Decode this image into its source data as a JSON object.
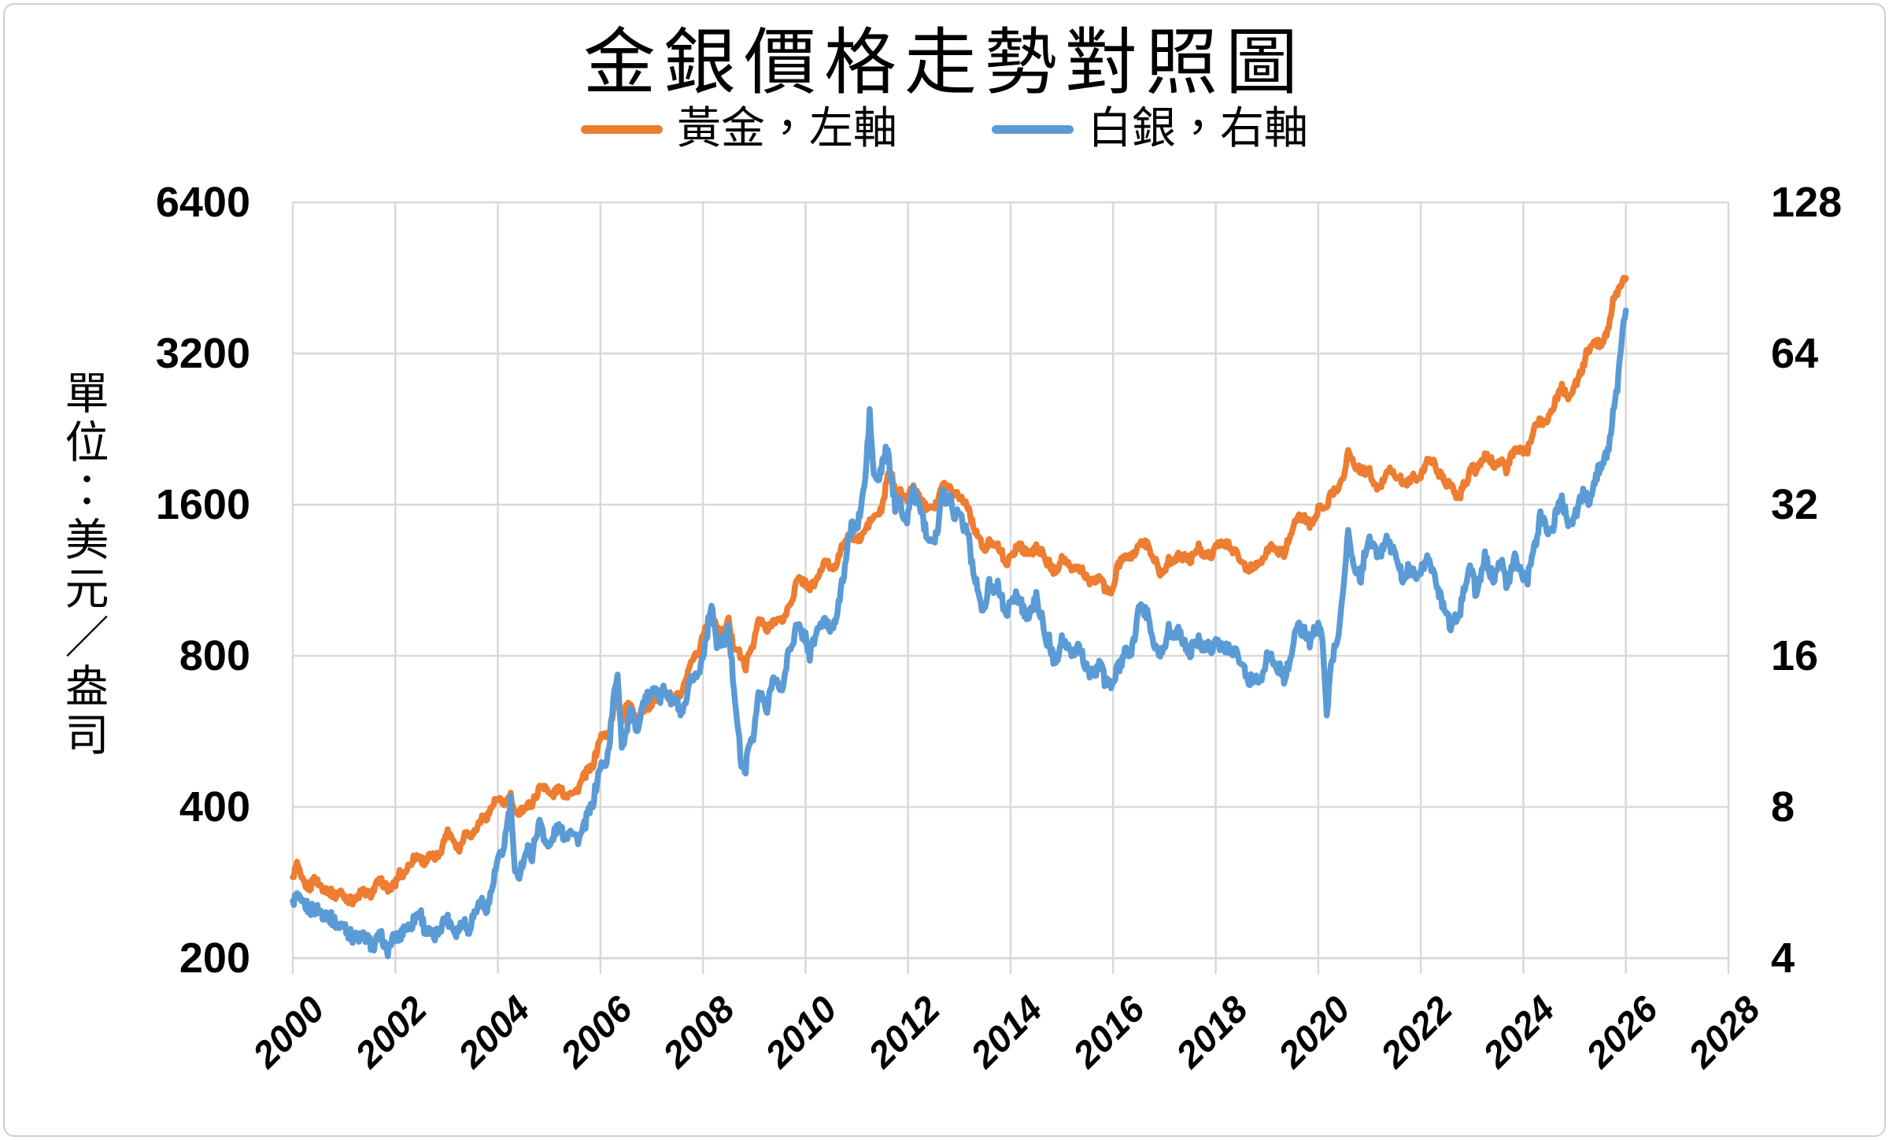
{
  "title": "金銀價格走勢對照圖",
  "y_axis_title": "單位：美元／盎司",
  "legend": [
    {
      "label": "黃金，左軸",
      "color": "#ED7D31"
    },
    {
      "label": "白銀，右軸",
      "color": "#5B9BD5"
    }
  ],
  "left_axis": {
    "ticks": [
      "6400",
      "3200",
      "1600",
      "800",
      "400",
      "200"
    ]
  },
  "right_axis": {
    "ticks": [
      "128",
      "64",
      "32",
      "16",
      "8",
      "4"
    ]
  },
  "x_axis": {
    "ticks": [
      "2000",
      "2002",
      "2004",
      "2006",
      "2008",
      "2010",
      "2012",
      "2014",
      "2016",
      "2018",
      "2020",
      "2022",
      "2024",
      "2026",
      "2028"
    ]
  },
  "colors": {
    "gridline": "#d9d9d9",
    "gold": "#ED7D31",
    "silver": "#5B9BD5"
  },
  "chart_data": {
    "type": "line",
    "title": "金銀價格走勢對照圖",
    "x_axis_range": [
      2000,
      2028
    ],
    "x_start_year": 2000,
    "x_step": "monthly",
    "grid": true,
    "legend_position": "top",
    "left_axis_scale": {
      "type": "log2",
      "min": 200,
      "max": 6400,
      "unit": "USD/oz"
    },
    "right_axis_scale": {
      "type": "log2",
      "min": 4,
      "max": 128,
      "unit": "USD/oz"
    },
    "series": [
      {
        "name": "黃金，左軸",
        "axis": "left",
        "color": "#ED7D31",
        "values": [
          290,
          308,
          286,
          280,
          276,
          288,
          282,
          276,
          274,
          270,
          266,
          272,
          266,
          262,
          260,
          262,
          272,
          270,
          267,
          274,
          284,
          283,
          276,
          276,
          281,
          295,
          294,
          304,
          314,
          321,
          315,
          310,
          319,
          317,
          320,
          333,
          357,
          352,
          340,
          328,
          352,
          356,
          352,
          362,
          378,
          380,
          390,
          407,
          414,
          406,
          410,
          420,
          384,
          392,
          398,
          402,
          407,
          422,
          440,
          442,
          424,
          423,
          436,
          429,
          421,
          432,
          426,
          439,
          458,
          472,
          478,
          512,
          552,
          556,
          560,
          615,
          690,
          598,
          634,
          634,
          600,
          586,
          628,
          630,
          632,
          666,
          656,
          680,
          668,
          656,
          666,
          666,
          714,
          756,
          808,
          804,
          892,
          924,
          985,
          912,
          890,
          892,
          942,
          840,
          830,
          790,
          762,
          818,
          858,
          945,
          926,
          892,
          930,
          948,
          936,
          950,
          998,
          1045,
          1130,
          1134,
          1118,
          1096,
          1114,
          1150,
          1206,
          1234,
          1195,
          1216,
          1272,
          1344,
          1372,
          1392,
          1358,
          1374,
          1426,
          1475,
          1512,
          1530,
          1575,
          1790,
          1870,
          1670,
          1740,
          1640,
          1658,
          1744,
          1676,
          1652,
          1586,
          1600,
          1592,
          1632,
          1746,
          1748,
          1722,
          1686,
          1672,
          1628,
          1594,
          1470,
          1414,
          1344,
          1288,
          1352,
          1350,
          1318,
          1276,
          1226,
          1246,
          1302,
          1338,
          1300,
          1290,
          1280,
          1312,
          1298,
          1238,
          1224,
          1178,
          1202,
          1252,
          1228,
          1188,
          1200,
          1192,
          1182,
          1132,
          1118,
          1126,
          1160,
          1088,
          1062,
          1098,
          1196,
          1246,
          1244,
          1262,
          1278,
          1340,
          1342,
          1328,
          1274,
          1240,
          1158,
          1194,
          1236,
          1232,
          1268,
          1248,
          1262,
          1238,
          1284,
          1316,
          1282,
          1284,
          1266,
          1332,
          1332,
          1326,
          1336,
          1304,
          1282,
          1240,
          1194,
          1192,
          1216,
          1224,
          1252,
          1294,
          1322,
          1302,
          1288,
          1282,
          1360,
          1416,
          1502,
          1512,
          1496,
          1466,
          1480,
          1562,
          1598,
          1592,
          1682,
          1718,
          1734,
          1845,
          2050,
          1942,
          1902,
          1868,
          1866,
          1864,
          1744,
          1712,
          1770,
          1868,
          1882,
          1808,
          1814,
          1758,
          1778,
          1822,
          1792,
          1818,
          1910,
          1990,
          1938,
          1850,
          1838,
          1766,
          1768,
          1672,
          1652,
          1752,
          1802,
          1922,
          1862,
          1922,
          1992,
          1982,
          1922,
          1952,
          1942,
          1872,
          1982,
          2042,
          2062,
          2042,
          2052,
          2162,
          2332,
          2352,
          2332,
          2402,
          2502,
          2632,
          2742,
          2652,
          2632,
          2752,
          2872,
          3002,
          3252,
          3302,
          3352,
          3352,
          3402,
          3652,
          4052,
          4202,
          4402,
          4520
        ]
      },
      {
        "name": "白銀，右軸",
        "axis": "right",
        "color": "#5B9BD5",
        "values": [
          5.2,
          5.3,
          5.1,
          5.1,
          5.0,
          5.0,
          5.0,
          4.9,
          4.9,
          4.8,
          4.7,
          4.6,
          4.7,
          4.5,
          4.4,
          4.4,
          4.4,
          4.4,
          4.3,
          4.2,
          4.4,
          4.4,
          4.1,
          4.3,
          4.4,
          4.4,
          4.6,
          4.6,
          4.7,
          4.9,
          4.9,
          4.5,
          4.5,
          4.4,
          4.5,
          4.7,
          4.8,
          4.7,
          4.5,
          4.6,
          4.8,
          4.5,
          4.8,
          5.0,
          5.2,
          5.0,
          5.2,
          5.7,
          6.3,
          6.4,
          7.2,
          8.2,
          5.8,
          5.9,
          6.3,
          6.6,
          6.4,
          7.1,
          7.5,
          6.9,
          6.6,
          7.0,
          7.3,
          7.1,
          7.0,
          7.3,
          7.0,
          6.9,
          7.2,
          7.7,
          8.0,
          8.8,
          9.7,
          9.6,
          10.5,
          12.9,
          14.9,
          10.7,
          11.2,
          12.4,
          11.6,
          11.7,
          12.9,
          13.2,
          13.3,
          14.0,
          13.2,
          13.8,
          13.2,
          12.9,
          12.9,
          12.0,
          12.8,
          14.1,
          14.7,
          14.6,
          16.2,
          17.9,
          20.6,
          17.1,
          16.9,
          17.2,
          18.1,
          14.6,
          12.0,
          9.6,
          9.6,
          10.8,
          11.3,
          13.5,
          13.1,
          12.3,
          14.1,
          14.7,
          13.4,
          14.3,
          16.3,
          17.1,
          18.4,
          17.8,
          17.5,
          16.0,
          17.2,
          18.2,
          18.6,
          18.6,
          18.0,
          19.1,
          20.7,
          23.5,
          26.9,
          29.4,
          28.3,
          31.7,
          36.0,
          48.5,
          36.5,
          35.6,
          38.3,
          41.6,
          36.6,
          31.6,
          33.6,
          29.1,
          30.6,
          34.6,
          32.6,
          31.6,
          28.6,
          27.6,
          27.4,
          28.6,
          34.1,
          32.6,
          33.1,
          30.1,
          31.6,
          28.8,
          28.7,
          24.1,
          22.6,
          19.9,
          19.8,
          22.4,
          21.9,
          22.0,
          20.6,
          19.6,
          20.0,
          21.3,
          20.8,
          19.8,
          19.1,
          19.8,
          20.9,
          19.6,
          17.2,
          17.2,
          15.7,
          16.1,
          17.3,
          16.7,
          16.1,
          16.3,
          16.8,
          15.8,
          14.9,
          14.7,
          14.7,
          15.9,
          14.2,
          13.9,
          14.3,
          15.0,
          15.5,
          16.3,
          16.1,
          17.4,
          20.3,
          19.7,
          19.3,
          17.8,
          16.6,
          16.0,
          16.9,
          18.0,
          17.5,
          18.0,
          17.3,
          16.7,
          16.2,
          17.2,
          17.1,
          16.8,
          17.0,
          16.5,
          17.3,
          16.6,
          16.4,
          16.6,
          16.5,
          16.2,
          15.6,
          14.7,
          14.2,
          14.7,
          14.3,
          14.8,
          16.0,
          15.9,
          15.2,
          15.1,
          14.5,
          15.3,
          16.3,
          18.4,
          18.0,
          17.7,
          17.1,
          17.9,
          18.1,
          17.6,
          12.3,
          15.2,
          17.0,
          18.0,
          22.9,
          28.4,
          24.4,
          23.8,
          22.7,
          26.0,
          27.0,
          26.5,
          24.9,
          26.0,
          27.9,
          26.2,
          25.6,
          24.0,
          22.3,
          24.0,
          23.4,
          22.9,
          23.5,
          24.5,
          25.2,
          23.1,
          21.8,
          20.5,
          19.9,
          18.1,
          18.9,
          19.3,
          21.4,
          23.6,
          23.8,
          21.0,
          22.7,
          25.2,
          23.7,
          22.8,
          24.5,
          24.3,
          22.3,
          23.0,
          25.1,
          23.9,
          23.0,
          22.7,
          25.0,
          27.1,
          30.6,
          29.6,
          28.1,
          28.9,
          31.6,
          32.6,
          30.6,
          29.1,
          30.1,
          32.1,
          33.6,
          32.6,
          33.1,
          36.1,
          38.6,
          39.1,
          42.1,
          48.1,
          54.1,
          68.0,
          78.0
        ]
      }
    ]
  }
}
